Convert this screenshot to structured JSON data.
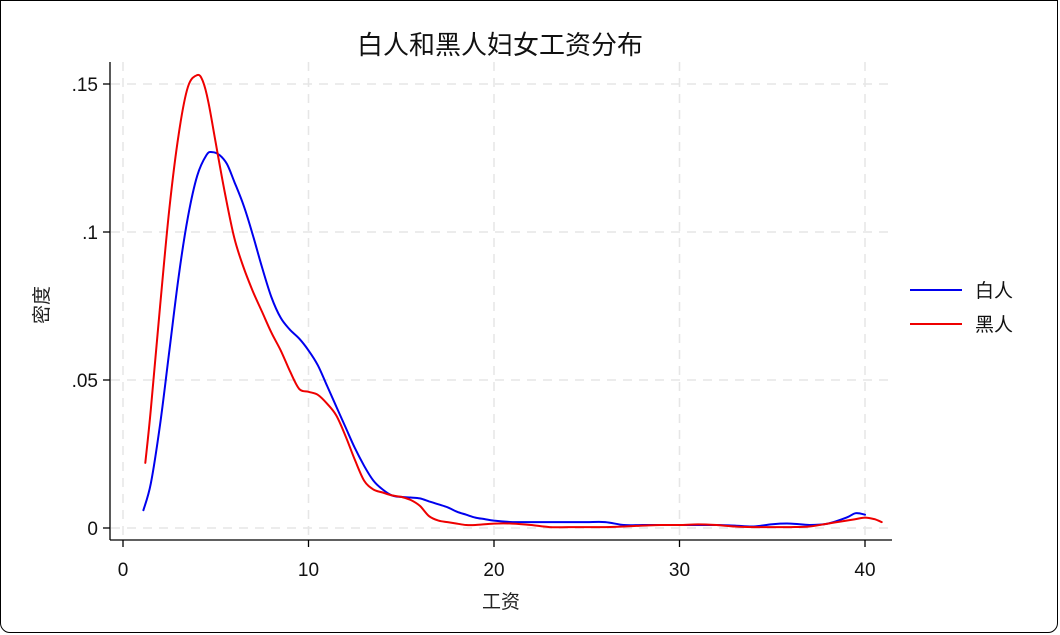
{
  "chart_data": {
    "type": "line",
    "title": "白人和黑人妇女工资分布",
    "xlabel": "工资",
    "ylabel": "密度",
    "xlim": [
      0,
      41
    ],
    "ylim": [
      0,
      0.155
    ],
    "x_ticks": [
      0,
      10,
      20,
      30,
      40
    ],
    "x_tick_labels": [
      "0",
      "10",
      "20",
      "30",
      "40"
    ],
    "y_ticks": [
      0,
      0.05,
      0.1,
      0.15
    ],
    "y_tick_labels": [
      "0",
      ".05",
      ".1",
      ".15"
    ],
    "grid": true,
    "legend_position": "right",
    "series": [
      {
        "name": "白人",
        "color": "#0000ee",
        "x": [
          1.1,
          1.5,
          2,
          2.5,
          3,
          3.5,
          4,
          4.5,
          4.8,
          5.2,
          5.6,
          6,
          6.5,
          7,
          7.5,
          8,
          8.5,
          9,
          9.5,
          10,
          10.5,
          11,
          11.5,
          12,
          12.5,
          13,
          13.5,
          14,
          14.5,
          15,
          15.5,
          16,
          16.5,
          17,
          17.5,
          18,
          18.5,
          19,
          19.5,
          20,
          21,
          22,
          23,
          24,
          25,
          26,
          27,
          28,
          29,
          30,
          31,
          32,
          33,
          34,
          35,
          36,
          37,
          38,
          39,
          39.5,
          40
        ],
        "y": [
          0.006,
          0.015,
          0.035,
          0.06,
          0.085,
          0.105,
          0.119,
          0.126,
          0.127,
          0.126,
          0.123,
          0.117,
          0.109,
          0.099,
          0.088,
          0.078,
          0.071,
          0.067,
          0.064,
          0.06,
          0.055,
          0.048,
          0.041,
          0.034,
          0.027,
          0.021,
          0.016,
          0.013,
          0.011,
          0.0105,
          0.0103,
          0.01,
          0.009,
          0.008,
          0.007,
          0.0055,
          0.0045,
          0.0035,
          0.003,
          0.0025,
          0.002,
          0.002,
          0.002,
          0.002,
          0.002,
          0.002,
          0.001,
          0.001,
          0.001,
          0.001,
          0.001,
          0.001,
          0.0008,
          0.0005,
          0.0013,
          0.0015,
          0.001,
          0.0015,
          0.0035,
          0.005,
          0.0045
        ]
      },
      {
        "name": "黑人",
        "color": "#ee0000",
        "x": [
          1.2,
          1.5,
          2,
          2.5,
          3,
          3.5,
          4,
          4.3,
          4.6,
          5,
          5.5,
          6,
          6.5,
          7,
          7.5,
          8,
          8.5,
          9,
          9.5,
          10,
          10.5,
          11,
          11.5,
          12,
          12.5,
          13,
          13.5,
          14,
          14.5,
          15,
          15.5,
          16,
          16.5,
          17,
          17.5,
          18,
          18.5,
          19,
          20,
          21,
          22,
          23,
          24,
          25,
          26,
          27,
          28,
          29,
          30,
          31,
          32,
          33,
          34,
          35,
          36,
          37,
          38,
          39,
          39.5,
          40,
          40.5,
          40.9
        ],
        "y": [
          0.022,
          0.04,
          0.075,
          0.108,
          0.133,
          0.149,
          0.153,
          0.151,
          0.144,
          0.13,
          0.113,
          0.098,
          0.088,
          0.08,
          0.073,
          0.066,
          0.06,
          0.053,
          0.047,
          0.046,
          0.045,
          0.042,
          0.038,
          0.031,
          0.023,
          0.016,
          0.013,
          0.012,
          0.011,
          0.0105,
          0.0095,
          0.0075,
          0.004,
          0.0025,
          0.002,
          0.0015,
          0.001,
          0.001,
          0.0015,
          0.0015,
          0.001,
          0.0003,
          0.0003,
          0.0003,
          0.0003,
          0.0005,
          0.0008,
          0.001,
          0.001,
          0.0012,
          0.001,
          0.0005,
          0.0003,
          0.0003,
          0.0003,
          0.0005,
          0.0015,
          0.0025,
          0.003,
          0.0035,
          0.003,
          0.002
        ]
      }
    ]
  }
}
